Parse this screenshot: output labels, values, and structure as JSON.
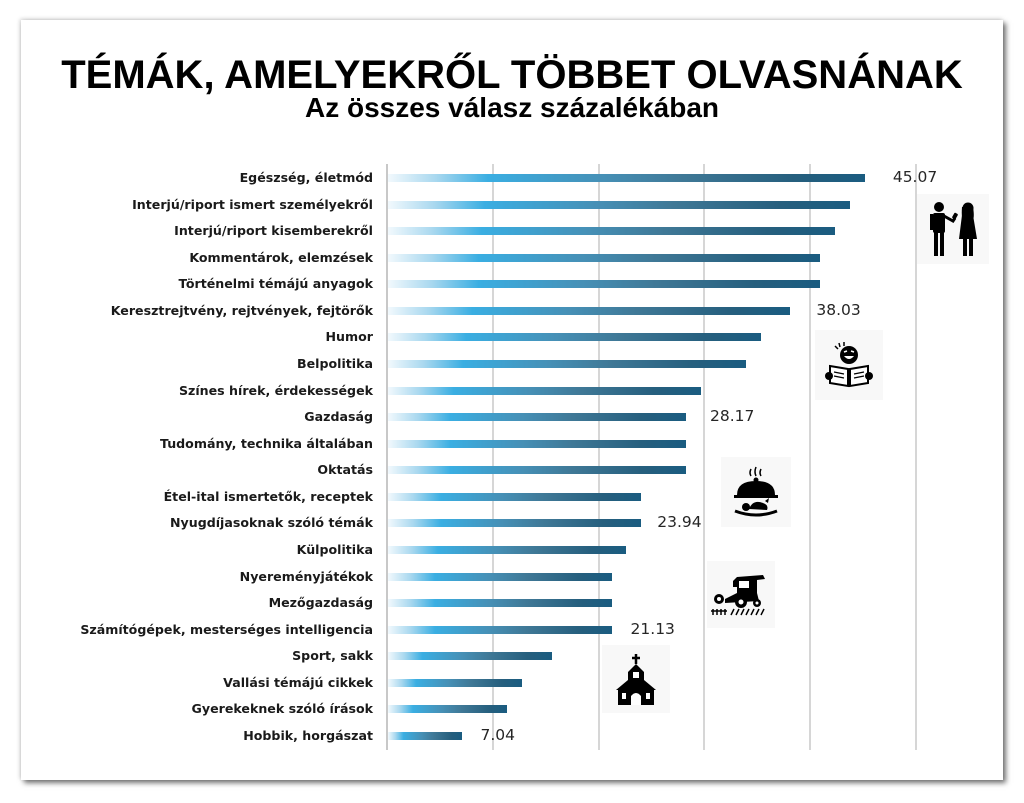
{
  "header": {
    "title": "TÉMÁK, AMELYEKRŐL TÖBBET OLVASNÁNAK",
    "subtitle": "Az összes válasz százalékában"
  },
  "colors": {
    "bar_start": "#f2f9fd",
    "bar_mid": "#3aaee2",
    "bar_end": "#1a5c80",
    "gridline": "#d6d6d6",
    "text": "#1a1a1a"
  },
  "icons": [
    {
      "name": "interview-icon",
      "near_row": 1
    },
    {
      "name": "newspaper-reader-icon",
      "near_row": 7
    },
    {
      "name": "food-cloche-icon",
      "near_row": 13
    },
    {
      "name": "combine-harvester-icon",
      "near_row": 16
    },
    {
      "name": "church-icon",
      "near_row": 19
    }
  ],
  "chart_data": {
    "type": "bar",
    "orientation": "horizontal",
    "title": "TÉMÁK, AMELYEKRŐL TÖBBET OLVASNÁNAK",
    "subtitle": "Az összes válasz százalékában",
    "xlabel": "",
    "ylabel": "",
    "xlim": [
      0,
      50
    ],
    "grid": {
      "vertical": true,
      "ticks": [
        0,
        10,
        20,
        30,
        40,
        50
      ]
    },
    "legend": null,
    "categories": [
      "Egészség, életmód",
      "Interjú/riport ismert személyekről",
      "Interjú/riport kisemberekről",
      "Kommentárok, elemzések",
      "Történelmi témájú anyagok",
      "Keresztrejtvény, rejtvények, fejtörők",
      "Humor",
      "Belpolitika",
      "Színes hírek, érdekességek",
      "Gazdaság",
      "Tudomány, technika általában",
      "Oktatás",
      "Étel-ital ismertetők, receptek",
      "Nyugdíjasoknak szóló témák",
      "Külpolitika",
      "Nyereményjátékok",
      "Mezőgazdaság",
      "Számítógépek, mesterséges intelligencia",
      "Sport, sakk",
      "Vallási témájú cikkek",
      "Gyerekeknek szóló írások",
      "Hobbik, horgászat"
    ],
    "values": [
      45.07,
      43.66,
      42.25,
      40.85,
      40.85,
      38.03,
      35.21,
      33.8,
      29.58,
      28.17,
      28.17,
      28.17,
      23.94,
      23.94,
      22.54,
      21.13,
      21.13,
      21.13,
      15.49,
      12.68,
      11.27,
      7.04
    ],
    "data_labels": [
      {
        "row": 0,
        "text": "45.07",
        "gap": 29
      },
      {
        "row": 5,
        "text": "38.03",
        "gap": 27
      },
      {
        "row": 9,
        "text": "28.17",
        "gap": 25
      },
      {
        "row": 13,
        "text": "23.94",
        "gap": 17
      },
      {
        "row": 17,
        "text": "21.13",
        "gap": 20
      },
      {
        "row": 21,
        "text": "7.04",
        "gap": 19
      }
    ]
  }
}
